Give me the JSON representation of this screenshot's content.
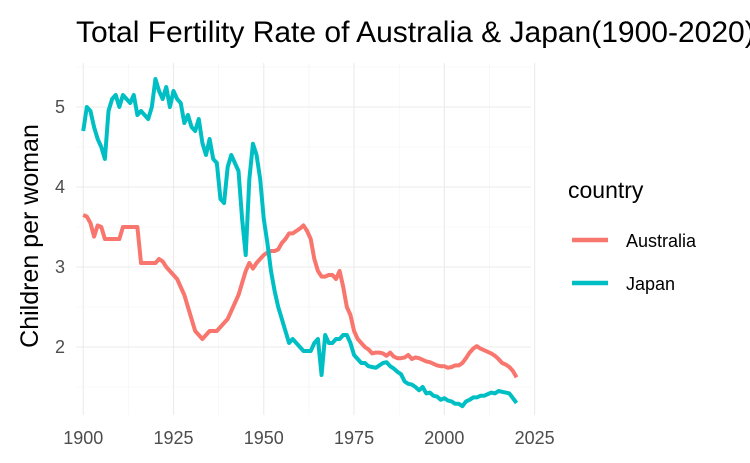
{
  "chart_data": {
    "type": "line",
    "title": "Total Fertility Rate of Australia & Japan(1900-2020)",
    "xlabel": "",
    "ylabel": "Children per woman",
    "xlim": [
      1898,
      2024
    ],
    "ylim": [
      1.15,
      5.55
    ],
    "x_ticks": [
      1900,
      1925,
      1950,
      1975,
      2000,
      2025
    ],
    "y_ticks": [
      2,
      3,
      4,
      5
    ],
    "grid": true,
    "legend": {
      "title": "country",
      "position": "right"
    },
    "series": [
      {
        "name": "Australia",
        "color": "#F8766D",
        "x": [
          1900,
          1901,
          1902,
          1903,
          1904,
          1905,
          1906,
          1907,
          1908,
          1909,
          1910,
          1911,
          1912,
          1913,
          1914,
          1915,
          1916,
          1917,
          1918,
          1919,
          1920,
          1921,
          1922,
          1923,
          1924,
          1925,
          1926,
          1927,
          1928,
          1929,
          1930,
          1931,
          1932,
          1933,
          1934,
          1935,
          1936,
          1937,
          1938,
          1939,
          1940,
          1941,
          1942,
          1943,
          1944,
          1945,
          1946,
          1947,
          1948,
          1949,
          1950,
          1951,
          1952,
          1953,
          1954,
          1955,
          1956,
          1957,
          1958,
          1959,
          1960,
          1961,
          1962,
          1963,
          1964,
          1965,
          1966,
          1967,
          1968,
          1969,
          1970,
          1971,
          1972,
          1973,
          1974,
          1975,
          1976,
          1977,
          1978,
          1979,
          1980,
          1981,
          1982,
          1983,
          1984,
          1985,
          1986,
          1987,
          1988,
          1989,
          1990,
          1991,
          1992,
          1993,
          1994,
          1995,
          1996,
          1997,
          1998,
          1999,
          2000,
          2001,
          2002,
          2003,
          2004,
          2005,
          2006,
          2007,
          2008,
          2009,
          2010,
          2011,
          2012,
          2013,
          2014,
          2015,
          2016,
          2017,
          2018,
          2019,
          2020
        ],
        "values": [
          3.65,
          3.63,
          3.55,
          3.38,
          3.52,
          3.5,
          3.35,
          3.35,
          3.35,
          3.35,
          3.35,
          3.5,
          3.5,
          3.5,
          3.5,
          3.5,
          3.05,
          3.05,
          3.05,
          3.05,
          3.05,
          3.1,
          3.07,
          3.0,
          2.95,
          2.9,
          2.85,
          2.75,
          2.65,
          2.5,
          2.35,
          2.2,
          2.15,
          2.1,
          2.15,
          2.2,
          2.2,
          2.2,
          2.25,
          2.3,
          2.35,
          2.45,
          2.55,
          2.65,
          2.8,
          2.95,
          3.05,
          2.98,
          3.05,
          3.1,
          3.15,
          3.18,
          3.2,
          3.2,
          3.22,
          3.3,
          3.35,
          3.42,
          3.42,
          3.45,
          3.48,
          3.52,
          3.45,
          3.35,
          3.1,
          2.95,
          2.88,
          2.88,
          2.9,
          2.9,
          2.85,
          2.95,
          2.75,
          2.5,
          2.4,
          2.2,
          2.1,
          2.05,
          2.0,
          1.97,
          1.92,
          1.93,
          1.93,
          1.92,
          1.89,
          1.93,
          1.88,
          1.86,
          1.86,
          1.87,
          1.9,
          1.85,
          1.87,
          1.86,
          1.84,
          1.82,
          1.81,
          1.79,
          1.77,
          1.76,
          1.76,
          1.74,
          1.75,
          1.77,
          1.77,
          1.8,
          1.86,
          1.93,
          1.98,
          2.01,
          1.98,
          1.96,
          1.94,
          1.92,
          1.89,
          1.85,
          1.8,
          1.78,
          1.75,
          1.7,
          1.62
        ]
      },
      {
        "name": "Japan",
        "color": "#00BFC4",
        "x": [
          1900,
          1901,
          1902,
          1903,
          1904,
          1905,
          1906,
          1907,
          1908,
          1909,
          1910,
          1911,
          1912,
          1913,
          1914,
          1915,
          1916,
          1917,
          1918,
          1919,
          1920,
          1921,
          1922,
          1923,
          1924,
          1925,
          1926,
          1927,
          1928,
          1929,
          1930,
          1931,
          1932,
          1933,
          1934,
          1935,
          1936,
          1937,
          1938,
          1939,
          1940,
          1941,
          1942,
          1943,
          1944,
          1945,
          1946,
          1947,
          1948,
          1949,
          1950,
          1951,
          1952,
          1953,
          1954,
          1955,
          1956,
          1957,
          1958,
          1959,
          1960,
          1961,
          1962,
          1963,
          1964,
          1965,
          1966,
          1967,
          1968,
          1969,
          1970,
          1971,
          1972,
          1973,
          1974,
          1975,
          1976,
          1977,
          1978,
          1979,
          1980,
          1981,
          1982,
          1983,
          1984,
          1985,
          1986,
          1987,
          1988,
          1989,
          1990,
          1991,
          1992,
          1993,
          1994,
          1995,
          1996,
          1997,
          1998,
          1999,
          2000,
          2001,
          2002,
          2003,
          2004,
          2005,
          2006,
          2007,
          2008,
          2009,
          2010,
          2011,
          2012,
          2013,
          2014,
          2015,
          2016,
          2017,
          2018,
          2019,
          2020
        ],
        "values": [
          4.7,
          5.0,
          4.95,
          4.75,
          4.6,
          4.5,
          4.35,
          4.95,
          5.1,
          5.15,
          5.0,
          5.15,
          5.1,
          5.05,
          5.15,
          4.9,
          4.95,
          4.9,
          4.85,
          5.0,
          5.35,
          5.2,
          5.1,
          5.25,
          5.0,
          5.2,
          5.1,
          5.05,
          4.8,
          4.9,
          4.75,
          4.7,
          4.85,
          4.55,
          4.4,
          4.6,
          4.35,
          4.3,
          3.85,
          3.8,
          4.25,
          4.4,
          4.3,
          4.2,
          3.6,
          3.15,
          4.1,
          4.54,
          4.4,
          4.1,
          3.6,
          3.3,
          2.95,
          2.7,
          2.5,
          2.35,
          2.2,
          2.05,
          2.1,
          2.05,
          2.0,
          1.95,
          1.95,
          1.95,
          2.05,
          2.1,
          1.65,
          2.15,
          2.05,
          2.05,
          2.1,
          2.1,
          2.15,
          2.15,
          2.05,
          1.9,
          1.85,
          1.8,
          1.8,
          1.76,
          1.75,
          1.74,
          1.77,
          1.8,
          1.81,
          1.76,
          1.73,
          1.69,
          1.66,
          1.57,
          1.54,
          1.53,
          1.5,
          1.46,
          1.5,
          1.42,
          1.43,
          1.39,
          1.38,
          1.34,
          1.36,
          1.33,
          1.32,
          1.29,
          1.29,
          1.26,
          1.32,
          1.34,
          1.37,
          1.37,
          1.39,
          1.39,
          1.41,
          1.43,
          1.42,
          1.45,
          1.44,
          1.43,
          1.42,
          1.36,
          1.3
        ]
      }
    ]
  }
}
